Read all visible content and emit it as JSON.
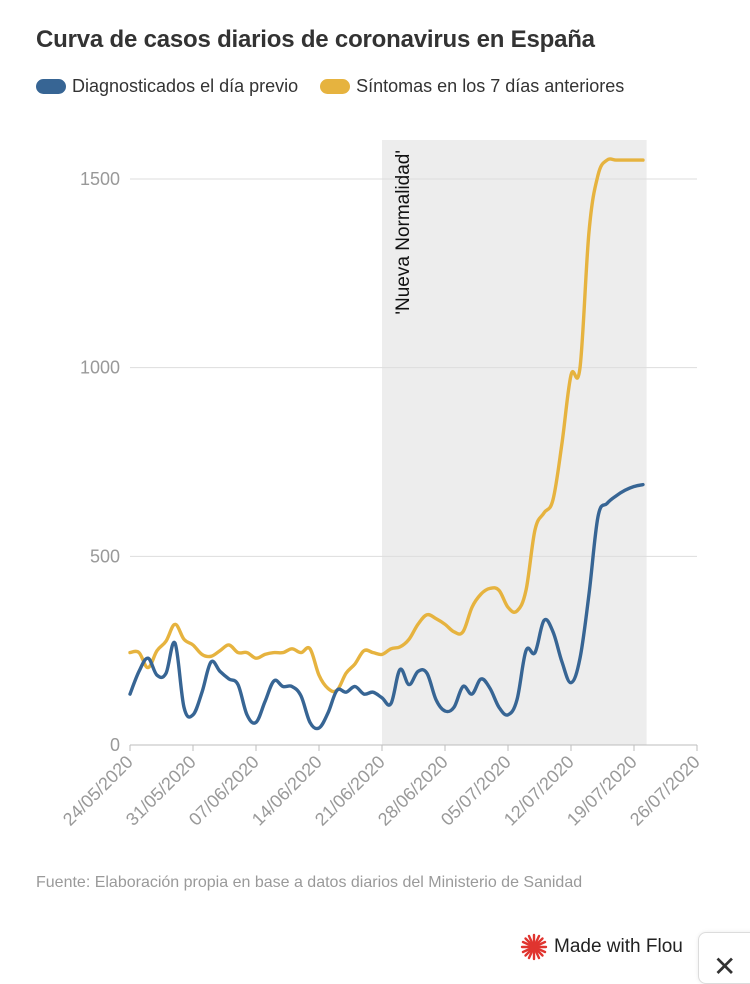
{
  "title": "Curva de casos diarios de coronavirus en España",
  "legend": {
    "items": [
      {
        "label": "Diagnosticados el día previo",
        "color": "#376594"
      },
      {
        "label": "Síntomas en los 7 días anteriores",
        "color": "#e6b33f"
      }
    ]
  },
  "footer": {
    "source": "Fuente: Elaboración propia en base a datos diarios del Ministerio de Sanidad",
    "brand": "Made with Flou"
  },
  "chart_data": {
    "type": "line",
    "title": "Curva de casos diarios de coronavirus en España",
    "xlabel": "",
    "ylabel": "",
    "x_ticks": [
      "24/05/2020",
      "31/05/2020",
      "07/06/2020",
      "14/06/2020",
      "21/06/2020",
      "28/06/2020",
      "05/07/2020",
      "12/07/2020",
      "19/07/2020",
      "26/07/2020"
    ],
    "xlim": [
      "24/05/2020",
      "26/07/2020"
    ],
    "y_ticks": [
      0,
      500,
      1000,
      1500
    ],
    "ylim": [
      0,
      1600
    ],
    "grid": true,
    "legend_position": "top-left",
    "annotations": [
      {
        "text": "'Nueva Normalidad'",
        "type": "shaded-band",
        "from": "21/06/2020",
        "to": "20/07/2020"
      }
    ],
    "series": [
      {
        "name": "Diagnosticados el día previo",
        "color": "#376594",
        "x": [
          "24/05/2020",
          "25/05/2020",
          "26/05/2020",
          "27/05/2020",
          "28/05/2020",
          "29/05/2020",
          "30/05/2020",
          "31/05/2020",
          "01/06/2020",
          "02/06/2020",
          "03/06/2020",
          "04/06/2020",
          "05/06/2020",
          "06/06/2020",
          "07/06/2020",
          "08/06/2020",
          "09/06/2020",
          "10/06/2020",
          "11/06/2020",
          "12/06/2020",
          "13/06/2020",
          "14/06/2020",
          "15/06/2020",
          "16/06/2020",
          "17/06/2020",
          "18/06/2020",
          "19/06/2020",
          "20/06/2020",
          "21/06/2020",
          "22/06/2020",
          "23/06/2020",
          "24/06/2020",
          "25/06/2020",
          "26/06/2020",
          "27/06/2020",
          "28/06/2020",
          "29/06/2020",
          "30/06/2020",
          "01/07/2020",
          "02/07/2020",
          "03/07/2020",
          "04/07/2020",
          "05/07/2020",
          "06/07/2020",
          "07/07/2020",
          "08/07/2020",
          "09/07/2020",
          "10/07/2020",
          "11/07/2020",
          "12/07/2020",
          "13/07/2020",
          "14/07/2020",
          "15/07/2020",
          "16/07/2020",
          "17/07/2020",
          "18/07/2020",
          "19/07/2020",
          "20/07/2020"
        ],
        "values": [
          135,
          195,
          230,
          185,
          190,
          270,
          100,
          80,
          140,
          220,
          195,
          175,
          160,
          80,
          60,
          115,
          170,
          155,
          155,
          130,
          60,
          45,
          85,
          145,
          140,
          155,
          135,
          140,
          125,
          110,
          200,
          160,
          195,
          190,
          120,
          90,
          100,
          155,
          135,
          175,
          150,
          100,
          80,
          120,
          250,
          245,
          330,
          300,
          220,
          165,
          230,
          400,
          605,
          640,
          660,
          675,
          685,
          690
        ]
      },
      {
        "name": "Síntomas en los 7 días anteriores",
        "color": "#e6b33f",
        "x": [
          "24/05/2020",
          "25/05/2020",
          "26/05/2020",
          "27/05/2020",
          "28/05/2020",
          "29/05/2020",
          "30/05/2020",
          "31/05/2020",
          "01/06/2020",
          "02/06/2020",
          "03/06/2020",
          "04/06/2020",
          "05/06/2020",
          "06/06/2020",
          "07/06/2020",
          "08/06/2020",
          "09/06/2020",
          "10/06/2020",
          "11/06/2020",
          "12/06/2020",
          "13/06/2020",
          "14/06/2020",
          "15/06/2020",
          "16/06/2020",
          "17/06/2020",
          "18/06/2020",
          "19/06/2020",
          "20/06/2020",
          "21/06/2020",
          "22/06/2020",
          "23/06/2020",
          "24/06/2020",
          "25/06/2020",
          "26/06/2020",
          "27/06/2020",
          "28/06/2020",
          "29/06/2020",
          "30/06/2020",
          "01/07/2020",
          "02/07/2020",
          "03/07/2020",
          "04/07/2020",
          "05/07/2020",
          "06/07/2020",
          "07/07/2020",
          "08/07/2020",
          "09/07/2020",
          "10/07/2020",
          "11/07/2020",
          "12/07/2020",
          "13/07/2020",
          "14/07/2020",
          "15/07/2020",
          "16/07/2020",
          "17/07/2020",
          "18/07/2020",
          "19/07/2020",
          "20/07/2020"
        ],
        "values": [
          245,
          245,
          205,
          250,
          275,
          320,
          280,
          265,
          240,
          235,
          250,
          265,
          245,
          245,
          230,
          240,
          245,
          245,
          255,
          245,
          255,
          185,
          150,
          145,
          190,
          215,
          250,
          245,
          240,
          255,
          260,
          280,
          320,
          345,
          335,
          320,
          300,
          300,
          365,
          400,
          415,
          410,
          365,
          355,
          410,
          570,
          615,
          650,
          800,
          980,
          1000,
          1360,
          1510,
          1550,
          1550,
          1550,
          1550,
          1550
        ]
      }
    ]
  }
}
